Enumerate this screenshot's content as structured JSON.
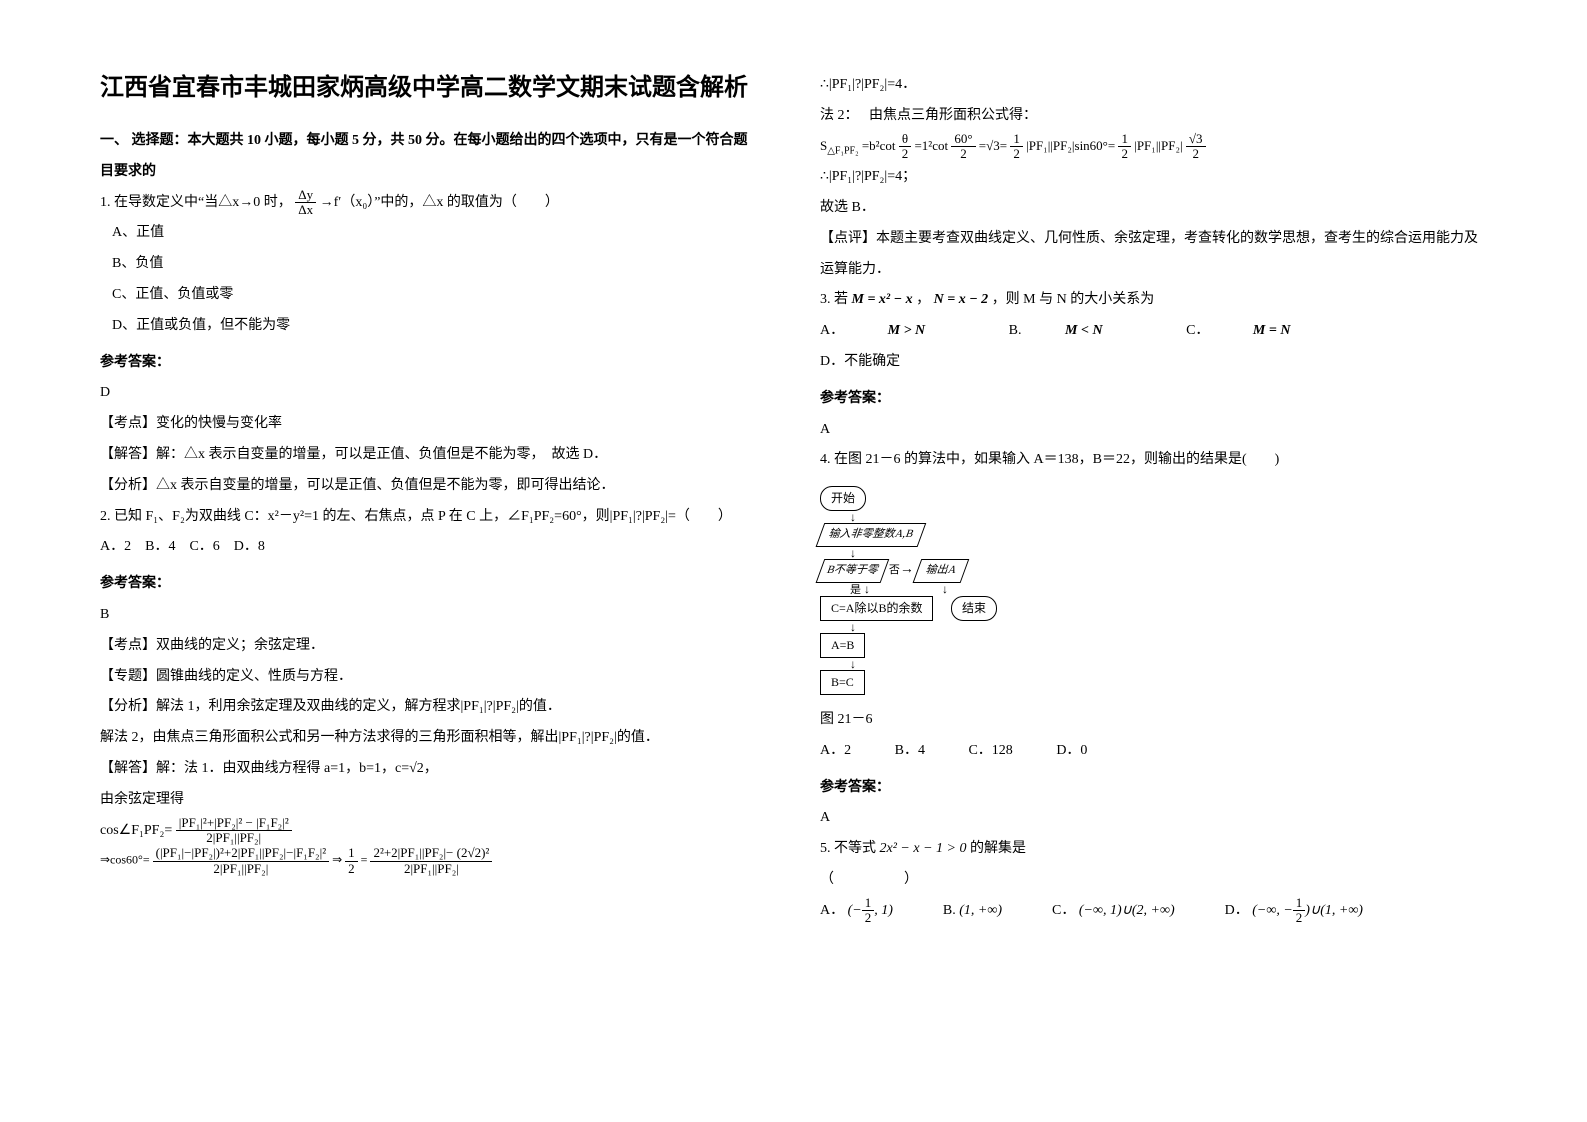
{
  "title": "江西省宜春市丰城田家炳高级中学高二数学文期末试题含解析",
  "section1": "一、 选择题：本大题共 10 小题，每小题 5 分，共 50 分。在每小题给出的四个选项中，只有是一个符合题目要求的",
  "q1": {
    "stem_a": "1. 在导数定义中“当△x→0 时，",
    "stem_b": " →f′（x₀）”中的，△x 的取值为（　　）",
    "frac_num": "Δy",
    "frac_den": "Δx",
    "optA": "A、正值",
    "optB": "B、负值",
    "optC": "C、正值、负值或零",
    "optD": "D、正值或负值，但不能为零",
    "ans_label": "参考答案：",
    "ans": "D",
    "kd": "【考点】变化的快慢与变化率",
    "jd": "【解答】解：△x 表示自变量的增量，可以是正值、负值但是不能为零，　故选 D．",
    "fx": "【分析】△x 表示自变量的增量，可以是正值、负值但是不能为零，即可得出结论．"
  },
  "q2": {
    "stem": "2. 已知 F₁、F₂为双曲线 C：x²－y²=1 的左、右焦点，点 P 在 C 上，∠F₁PF₂=60°，则|PF₁|?|PF₂|=（　　）",
    "opts": "A．2　B．4　C．6　D．8",
    "ans_label": "参考答案：",
    "ans": "B",
    "kd": "【考点】双曲线的定义；余弦定理．",
    "zt": "【专题】圆锥曲线的定义、性质与方程．",
    "fx": "【分析】解法 1，利用余弦定理及双曲线的定义，解方程求|PF₁|?|PF₂|的值．",
    "fx2": "解法 2，由焦点三角形面积公式和另一种方法求得的三角形面积相等，解出|PF₁|?|PF₂|的值．",
    "jd1": "【解答】解：法 1．由双曲线方程得 a=1，b=1，c=√2，",
    "jd2": "由余弦定理得",
    "cos_lhs": "cos∠F₁PF₂=",
    "cos_num": "|PF₁|²+|PF₂|² − |F₁F₂|²",
    "cos_den": "2|PF₁||PF₂|",
    "eq_lhs": "⇒cos60°=",
    "eq_num1": "(|PF₁|−|PF₂|)²+2|PF₁||PF₂|−|F₁F₂|²",
    "eq_den1": "2|PF₁||PF₂|",
    "eq_mid": "⇒",
    "eq_half": "1",
    "eq_half_den": "2",
    "eq_eq": "=",
    "eq_num2": "2²+2|PF₁||PF₂|− (2√2)²",
    "eq_den2": "2|PF₁||PF₂|"
  },
  "col2": {
    "line1": "∴|PF₁|?|PF₂|=4．",
    "line2": "法 2：　 由焦点三角形面积公式得：",
    "S_lhs": "S",
    "S_sub": "△F₁PF₂",
    "S_eq1": "=b²cot",
    "S_frac1_num": "θ",
    "S_frac1_den": "2",
    "S_eq2": "=1²cot",
    "S_frac2_num": "60°",
    "S_frac2_den": "2",
    "S_eq3": "=√3=",
    "S_frac3_num": "1",
    "S_frac3_den": "2",
    "S_eq4": "|PF₁||PF₂|sin60°=",
    "S_frac4_num": "1",
    "S_frac4_den": "2",
    "S_eq5": "|PF₁||PF₂|",
    "S_frac5_num": "√3",
    "S_frac5_den": "2",
    "line3": "∴|PF₁|?|PF₂|=4；",
    "line4": "故选 B．",
    "dp": "【点评】本题主要考查双曲线定义、几何性质、余弦定理，考查转化的数学思想，查考生的综合运用能力及运算能力．"
  },
  "q3": {
    "stem_a": "3. 若",
    "M": "M = x² − x",
    "sep": "，",
    "N": "N = x − 2",
    "stem_b": "，则 M 与 N 的大小关系为",
    "optA_pre": "A．",
    "optA": "M > N",
    "optB_pre": "B.",
    "optB": "M < N",
    "optC_pre": "C．",
    "optC": "M = N",
    "optD": "D．不能确定",
    "ans_label": "参考答案：",
    "ans": "A"
  },
  "q4": {
    "stem": "4. 在图 21－6 的算法中，如果输入 A＝138，B＝22，则输出的结果是(　　)",
    "caption": "图 21－6",
    "optA": "A．2",
    "optB": "B．4",
    "optC": "C．128",
    "optD": "D．0",
    "ans_label": "参考答案：",
    "ans": "A",
    "flow": {
      "start": "开始",
      "input": "输入非零整数A,B",
      "cond": "B不等于零",
      "out": "输出A",
      "calc": "C=A除以B的余数",
      "end": "结束",
      "a1": "A=B",
      "a2": "B=C",
      "yes": "是",
      "no": "否"
    }
  },
  "q5": {
    "stem_a": "5. 不等式",
    "ineq": "2x² − x − 1 > 0",
    "stem_b": "的解集是",
    "blank": "（　　　　　）",
    "optA_pre": "A．",
    "optA_l": "(−",
    "optA_num": "1",
    "optA_den": "2",
    "optA_r": ", 1)",
    "optB_pre": "B.",
    "optB": "(1, +∞)",
    "optC_pre": "C．",
    "optC": "(−∞, 1)∪(2, +∞)",
    "optD_pre": "D．",
    "optD_l": "(−∞, −",
    "optD_num": "1",
    "optD_den": "2",
    "optD_r": ")∪(1, +∞)"
  }
}
